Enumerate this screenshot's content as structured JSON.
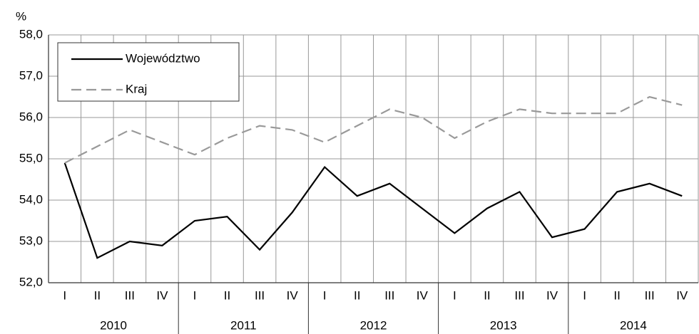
{
  "chart_data": {
    "type": "line",
    "y_unit": "%",
    "categories": [
      "I",
      "II",
      "III",
      "IV",
      "I",
      "II",
      "III",
      "IV",
      "I",
      "II",
      "III",
      "IV",
      "I",
      "II",
      "III",
      "IV",
      "I",
      "II",
      "III",
      "IV"
    ],
    "groups": [
      "2010",
      "2011",
      "2012",
      "2013",
      "2014"
    ],
    "series": [
      {
        "name": "Województwo",
        "color": "#000000",
        "dash": "solid",
        "values": [
          54.9,
          52.6,
          53.0,
          52.9,
          53.5,
          53.6,
          52.8,
          53.7,
          54.8,
          54.1,
          54.4,
          53.8,
          53.2,
          53.8,
          54.2,
          53.1,
          53.3,
          54.2,
          54.4,
          54.1
        ]
      },
      {
        "name": "Kraj",
        "color": "#999999",
        "dash": "dashed",
        "values": [
          54.9,
          55.3,
          55.7,
          55.4,
          55.1,
          55.5,
          55.8,
          55.7,
          55.4,
          55.8,
          56.2,
          56.0,
          55.5,
          55.9,
          56.2,
          56.1,
          56.1,
          56.1,
          56.5,
          56.3
        ]
      }
    ],
    "ylim": [
      52,
      58
    ],
    "yticks": [
      {
        "value": 52,
        "label": "52,0"
      },
      {
        "value": 53,
        "label": "53,0"
      },
      {
        "value": 54,
        "label": "54,0"
      },
      {
        "value": 55,
        "label": "55,0"
      },
      {
        "value": 56,
        "label": "56,0"
      },
      {
        "value": 57,
        "label": "57,0"
      },
      {
        "value": 58,
        "label": "58,0"
      }
    ],
    "grid": true,
    "legend": "top-left"
  }
}
